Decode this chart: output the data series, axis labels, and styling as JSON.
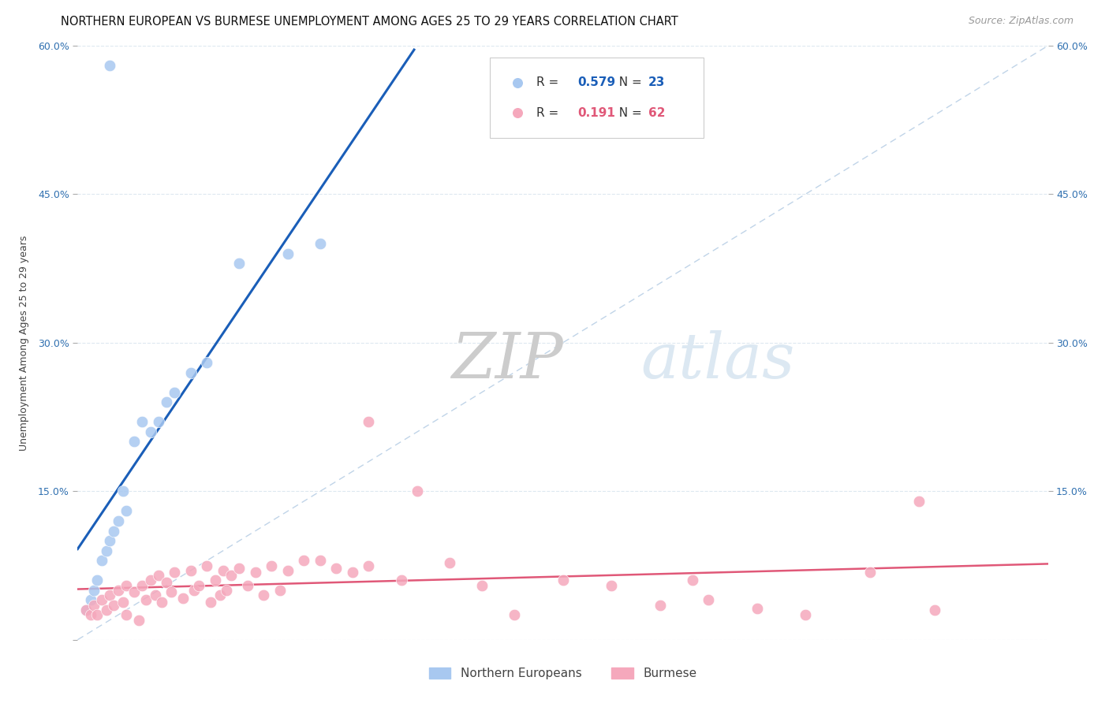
{
  "title": "NORTHERN EUROPEAN VS BURMESE UNEMPLOYMENT AMONG AGES 25 TO 29 YEARS CORRELATION CHART",
  "source": "Source: ZipAtlas.com",
  "ylabel": "Unemployment Among Ages 25 to 29 years",
  "xlim": [
    0.0,
    0.6
  ],
  "ylim": [
    0.0,
    0.6
  ],
  "blue_R": "0.579",
  "blue_N": "23",
  "pink_R": "0.191",
  "pink_N": "62",
  "blue_color": "#a8c8f0",
  "pink_color": "#f5a8bc",
  "blue_line_color": "#1a5eb8",
  "pink_line_color": "#e05878",
  "diagonal_line_color": "#c0d4e8",
  "watermark_color": "#dce8f2",
  "background_color": "#ffffff",
  "grid_color": "#dde8f0",
  "blue_x": [
    0.005,
    0.008,
    0.01,
    0.012,
    0.015,
    0.018,
    0.02,
    0.022,
    0.025,
    0.028,
    0.03,
    0.035,
    0.04,
    0.045,
    0.05,
    0.055,
    0.06,
    0.07,
    0.08,
    0.1,
    0.13,
    0.15,
    0.02
  ],
  "blue_y": [
    0.03,
    0.04,
    0.05,
    0.06,
    0.08,
    0.09,
    0.1,
    0.11,
    0.12,
    0.15,
    0.13,
    0.2,
    0.22,
    0.21,
    0.22,
    0.24,
    0.25,
    0.27,
    0.28,
    0.38,
    0.39,
    0.4,
    0.58
  ],
  "pink_x": [
    0.005,
    0.008,
    0.01,
    0.012,
    0.015,
    0.018,
    0.02,
    0.022,
    0.025,
    0.028,
    0.03,
    0.03,
    0.035,
    0.038,
    0.04,
    0.042,
    0.045,
    0.048,
    0.05,
    0.052,
    0.055,
    0.058,
    0.06,
    0.065,
    0.07,
    0.072,
    0.075,
    0.08,
    0.082,
    0.085,
    0.088,
    0.09,
    0.092,
    0.095,
    0.1,
    0.105,
    0.11,
    0.115,
    0.12,
    0.125,
    0.13,
    0.14,
    0.15,
    0.16,
    0.17,
    0.18,
    0.2,
    0.21,
    0.23,
    0.25,
    0.27,
    0.3,
    0.33,
    0.36,
    0.39,
    0.42,
    0.45,
    0.49,
    0.53,
    0.18,
    0.38,
    0.52
  ],
  "pink_y": [
    0.03,
    0.025,
    0.035,
    0.025,
    0.04,
    0.03,
    0.045,
    0.035,
    0.05,
    0.038,
    0.055,
    0.025,
    0.048,
    0.02,
    0.055,
    0.04,
    0.06,
    0.045,
    0.065,
    0.038,
    0.058,
    0.048,
    0.068,
    0.042,
    0.07,
    0.05,
    0.055,
    0.075,
    0.038,
    0.06,
    0.045,
    0.07,
    0.05,
    0.065,
    0.072,
    0.055,
    0.068,
    0.045,
    0.075,
    0.05,
    0.07,
    0.08,
    0.08,
    0.072,
    0.068,
    0.075,
    0.06,
    0.15,
    0.078,
    0.055,
    0.025,
    0.06,
    0.055,
    0.035,
    0.04,
    0.032,
    0.025,
    0.068,
    0.03,
    0.22,
    0.06,
    0.14
  ]
}
